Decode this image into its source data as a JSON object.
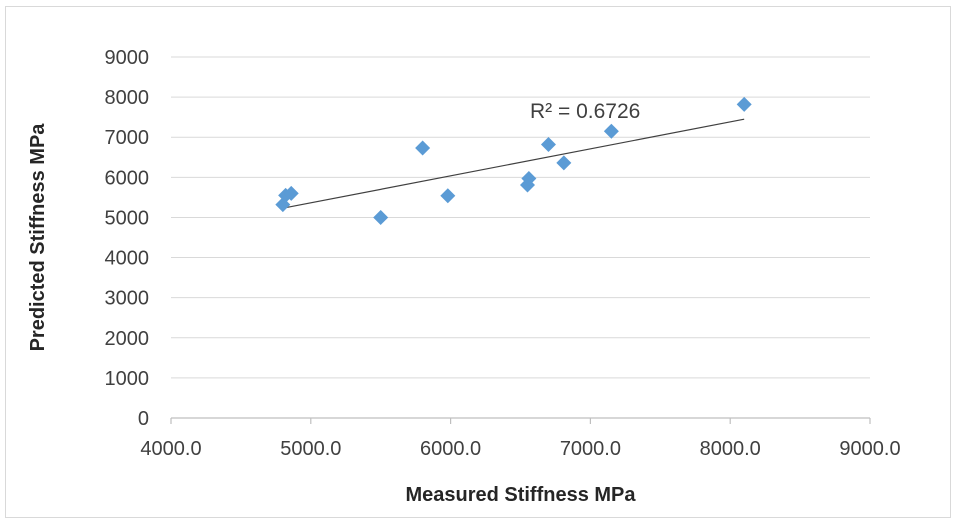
{
  "chart_data": {
    "type": "scatter",
    "title": "",
    "xlabel": "Measured Stiffness MPa",
    "ylabel": "Predicted Stiffness MPa",
    "xlim": [
      4000,
      9000
    ],
    "ylim": [
      0,
      9000
    ],
    "x_ticks": [
      4000,
      5000,
      6000,
      7000,
      8000,
      9000
    ],
    "x_tick_labels": [
      "4000.0",
      "5000.0",
      "6000.0",
      "7000.0",
      "8000.0",
      "9000.0"
    ],
    "y_ticks": [
      0,
      1000,
      2000,
      3000,
      4000,
      5000,
      6000,
      7000,
      8000,
      9000
    ],
    "y_tick_labels": [
      "0",
      "1000",
      "2000",
      "3000",
      "4000",
      "5000",
      "6000",
      "7000",
      "8000",
      "9000"
    ],
    "grid": "horizontal",
    "legend": "none",
    "marker": "diamond",
    "marker_color": "#5b9bd5",
    "trendline_color": "#404040",
    "points": [
      {
        "x": 4800,
        "y": 5320
      },
      {
        "x": 4820,
        "y": 5550
      },
      {
        "x": 4860,
        "y": 5600
      },
      {
        "x": 5500,
        "y": 5000
      },
      {
        "x": 5800,
        "y": 6730
      },
      {
        "x": 5980,
        "y": 5540
      },
      {
        "x": 6550,
        "y": 5810
      },
      {
        "x": 6560,
        "y": 5970
      },
      {
        "x": 6700,
        "y": 6820
      },
      {
        "x": 6810,
        "y": 6360
      },
      {
        "x": 7150,
        "y": 7150
      },
      {
        "x": 8100,
        "y": 7820
      }
    ],
    "trendline": {
      "type": "linear",
      "start": {
        "x": 4800,
        "y": 5230
      },
      "end": {
        "x": 8100,
        "y": 7450
      },
      "annotation": "R² = 0.6726"
    }
  }
}
